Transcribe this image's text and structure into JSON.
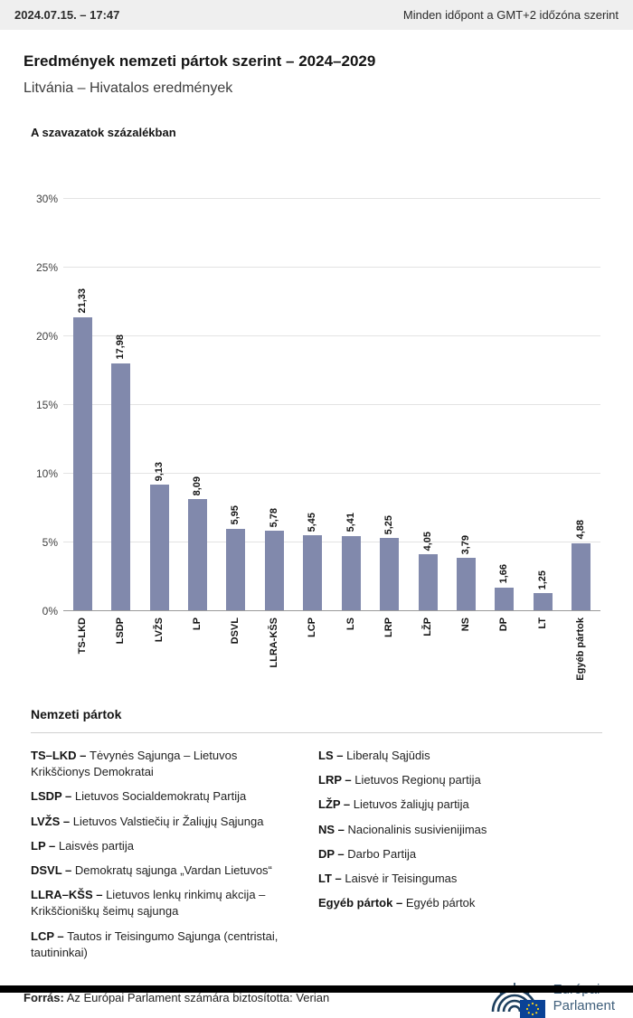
{
  "header": {
    "datetime": "2024.07.15. – 17:47",
    "timezone_note": "Minden időpont a GMT+2 időzóna szerint"
  },
  "titles": {
    "title": "Eredmények nemzeti pártok szerint – 2024–2029",
    "subtitle": "Litvánia – Hivatalos eredmények",
    "chart_heading": "A szavazatok százalékban"
  },
  "chart_data": {
    "type": "bar",
    "title": "A szavazatok százalékban",
    "categories": [
      "TS-LKD",
      "LSDP",
      "LVŽS",
      "LP",
      "DSVL",
      "LLRA-KŠS",
      "LCP",
      "LS",
      "LRP",
      "LŽP",
      "NS",
      "DP",
      "LT",
      "Egyéb pártok"
    ],
    "values": [
      21.33,
      17.98,
      9.13,
      8.09,
      5.95,
      5.78,
      5.45,
      5.41,
      5.25,
      4.05,
      3.79,
      1.66,
      1.25,
      4.88
    ],
    "value_labels": [
      "21,33",
      "17,98",
      "9,13",
      "8,09",
      "5,95",
      "5,78",
      "5,45",
      "5,41",
      "5,25",
      "4,05",
      "3,79",
      "1,66",
      "1,25",
      "4,88"
    ],
    "ylim": [
      0,
      30
    ],
    "ytick_step": 5,
    "ytick_labels": [
      "0%",
      "5%",
      "10%",
      "15%",
      "20%",
      "25%",
      "30%"
    ],
    "grid": true,
    "bar_color": "#8189ac",
    "legend_position": "below"
  },
  "legend": {
    "heading": "Nemzeti pártok",
    "left_column": [
      {
        "abbr": "TS–LKD –",
        "name": "Tėvynės Sąjunga – Lietuvos Krikščionys Demokratai"
      },
      {
        "abbr": "LSDP –",
        "name": "Lietuvos Socialdemokratų Partija"
      },
      {
        "abbr": "LVŽS –",
        "name": "Lietuvos Valstiečių ir Žaliųjų Sąjunga"
      },
      {
        "abbr": "LP –",
        "name": "Laisvės partija"
      },
      {
        "abbr": "DSVL –",
        "name": "Demokratų sąjunga „Vardan Lietuvos“"
      },
      {
        "abbr": "LLRA–KŠS –",
        "name": "Lietuvos lenkų rinkimų akcija – Krikščioniškų šeimų sąjunga"
      },
      {
        "abbr": "LCP –",
        "name": "Tautos ir Teisingumo Sąjunga (centristai, tautininkai)"
      }
    ],
    "right_column": [
      {
        "abbr": "LS –",
        "name": "Liberalų Sąjūdis"
      },
      {
        "abbr": "LRP –",
        "name": "Lietuvos Regionų partija"
      },
      {
        "abbr": "LŽP –",
        "name": "Lietuvos žaliųjų partija"
      },
      {
        "abbr": "NS –",
        "name": "Nacionalinis susivienijimas"
      },
      {
        "abbr": "DP –",
        "name": "Darbo Partija"
      },
      {
        "abbr": "LT –",
        "name": "Laisvė ir Teisingumas"
      },
      {
        "abbr": "Egyéb pártok –",
        "name": "Egyéb pártok"
      }
    ]
  },
  "footer": {
    "source_label": "Forrás:",
    "source_text": "Az Európai Parlament számára biztosította: Verian",
    "logo_line1": "Európai",
    "logo_line2": "Parlament"
  }
}
